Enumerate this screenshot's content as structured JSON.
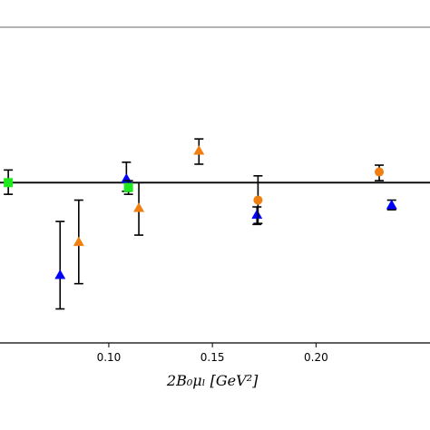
{
  "chart_data": {
    "type": "scatter",
    "title": "",
    "xlabel": "2B₀μₗ [GeV²]",
    "ylabel": "",
    "xlim": [
      0.0475,
      0.255
    ],
    "ylim": [
      -1.65,
      1.6
    ],
    "x_ticks": [
      0.1,
      0.15,
      0.2
    ],
    "x_tick_labels": [
      "0.10",
      "0.15",
      "0.20"
    ],
    "grid": false,
    "reference_line": 0.0,
    "series": [
      {
        "color": "#0000ff",
        "marker": "triangle",
        "points": [
          {
            "x": 0.0765,
            "y": -0.95,
            "lo": -1.3,
            "hi": -0.4
          },
          {
            "x": 0.1085,
            "y": 0.04,
            "lo": -0.09,
            "hi": 0.21
          },
          {
            "x": 0.1715,
            "y": -0.33,
            "lo": -0.43,
            "hi": -0.25
          },
          {
            "x": 0.2365,
            "y": -0.23,
            "lo": -0.28,
            "hi": -0.18
          }
        ]
      },
      {
        "color": "#f07f11",
        "marker": "triangle",
        "points": [
          {
            "x": 0.0855,
            "y": -0.61,
            "lo": -1.04,
            "hi": -0.18
          },
          {
            "x": 0.1145,
            "y": -0.26,
            "lo": -0.54,
            "hi": 0.0
          },
          {
            "x": 0.1435,
            "y": 0.33,
            "lo": 0.19,
            "hi": 0.45
          }
        ]
      },
      {
        "color": "#f07f11",
        "marker": "circle",
        "points": [
          {
            "x": 0.172,
            "y": -0.18,
            "lo": -0.42,
            "hi": 0.07
          },
          {
            "x": 0.2305,
            "y": 0.11,
            "lo": 0.02,
            "hi": 0.18
          }
        ]
      },
      {
        "color": "#1ee81e",
        "marker": "square",
        "points": [
          {
            "x": 0.0515,
            "y": 0.0,
            "lo": -0.12,
            "hi": 0.13
          },
          {
            "x": 0.1095,
            "y": -0.05,
            "lo": -0.12,
            "hi": 0.02
          }
        ]
      }
    ]
  }
}
